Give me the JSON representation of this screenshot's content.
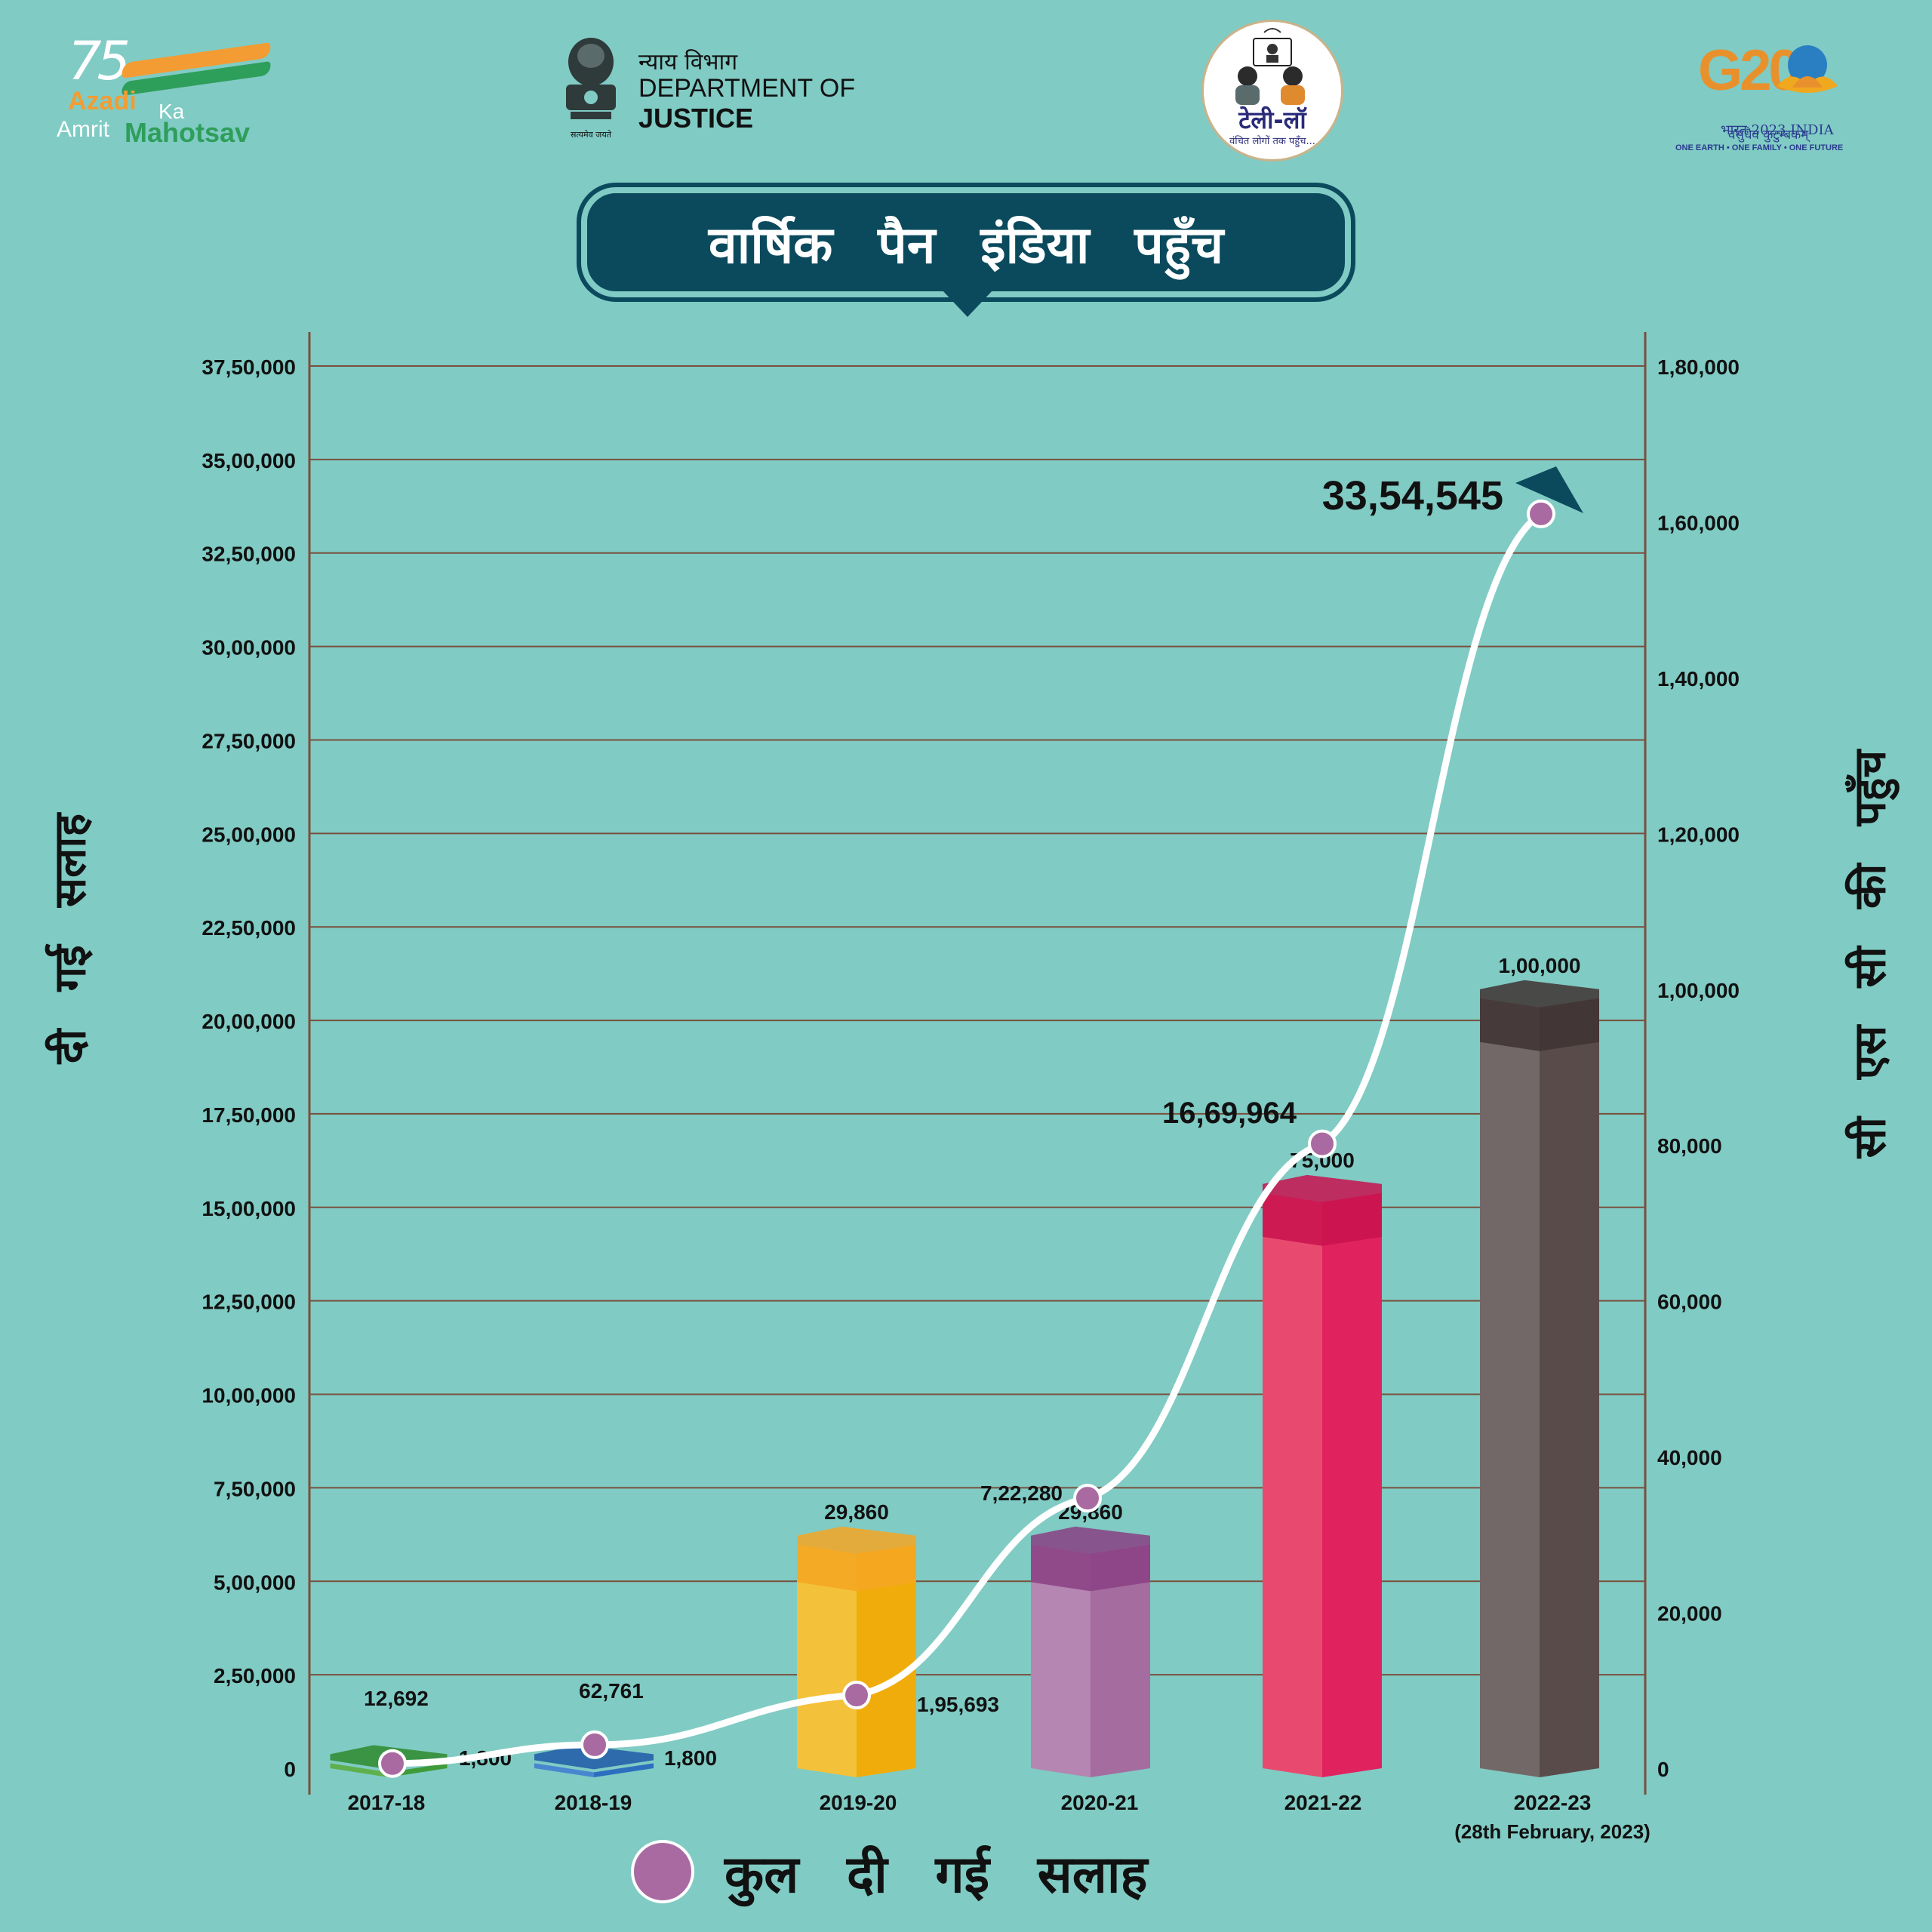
{
  "logos": {
    "azadi": {
      "num": "75",
      "azadi": "Azadi",
      "ka": "Ka",
      "amrit": "Amrit",
      "mahotsav": "Mahotsav"
    },
    "doj": {
      "hindi": "न्याय विभाग",
      "dept": "DEPARTMENT OF",
      "justice": "JUSTICE",
      "emblem_caption": "सत्यमेव जयते"
    },
    "tele_law": {
      "title": "टेली-लॉ",
      "subtitle": "वंचित लोगों तक पहुँच..."
    },
    "g20": {
      "text": "G20",
      "hindi": "भारत 2023 INDIA",
      "tagline": "वसुधैव कुटुम्बकम्",
      "motto": "ONE EARTH • ONE FAMILY • ONE FUTURE"
    }
  },
  "colors": {
    "background": "#80cbc4",
    "title_bg": "#0b4a5d",
    "grid": "#7a4f3d",
    "line": "#ffffff",
    "dot": "#a96aa1"
  },
  "chart_data": {
    "type": "bar",
    "title": "वार्षिक पैन इंडिया पहुँच",
    "categories": [
      "2017-18",
      "2018-19",
      "2019-20",
      "2020-21",
      "2021-22",
      "2022-23"
    ],
    "category_notes": [
      "",
      "",
      "",
      "",
      "",
      "(28th February, 2023)"
    ],
    "left_axis": {
      "label": "दी गई सलाह",
      "ylim": [
        0,
        3750000
      ],
      "ticks": [
        "0",
        "2,50,000",
        "5,00,000",
        "7,50,000",
        "10,00,000",
        "12,50,000",
        "15,00,000",
        "17,50,000",
        "20,00,000",
        "22,50,000",
        "25,00,000",
        "27,50,000",
        "30,00,000",
        "32,50,000",
        "35,00,000",
        "37,50,000"
      ]
    },
    "right_axis": {
      "label": "सी एस सी की पहुँच",
      "ylim": [
        0,
        180000
      ],
      "ticks": [
        "0",
        "20,000",
        "40,000",
        "60,000",
        "80,000",
        "1,00,000",
        "1,20,000",
        "1,40,000",
        "1,60,000",
        "1,80,000"
      ],
      "tick_values": [
        0,
        20000,
        40000,
        60000,
        80000,
        100000,
        120000,
        140000,
        160000,
        180000
      ]
    },
    "bars": {
      "name": "सी एस सी की पहुँच",
      "axis": "right",
      "values": [
        1800,
        1800,
        29860,
        29860,
        75000,
        100000
      ],
      "labels": [
        "1,800",
        "1,800",
        "29,860",
        "29,860",
        "75,000",
        "1,00,000"
      ],
      "colors": [
        {
          "front": "#5fb04d",
          "side": "#3f9a3a",
          "top": "#2e8b2e"
        },
        {
          "front": "#4a86d0",
          "side": "#2d6fbf",
          "top": "#1f5ba8"
        },
        {
          "front": "#f4c13a",
          "side": "#f0ac0b",
          "top": "#f5a623"
        },
        {
          "front": "#b586b1",
          "side": "#a56c9f",
          "top": "#8a3f84"
        },
        {
          "front": "#e84a6f",
          "side": "#e0225f",
          "top": "#c8124f"
        },
        {
          "front": "#736868",
          "side": "#5a4b4b",
          "top": "#3f3333"
        }
      ]
    },
    "series": [
      {
        "name": "कुल दी गई सलाह",
        "axis": "left",
        "values": [
          12692,
          62761,
          195693,
          722280,
          1669964,
          3354545
        ],
        "labels": [
          "12,692",
          "62,761",
          "1,95,693",
          "7,22,280",
          "16,69,964",
          "33,54,545"
        ]
      }
    ],
    "legend": {
      "label": "कुल दी गई सलाह",
      "placement": "bottom"
    },
    "grid": true
  }
}
